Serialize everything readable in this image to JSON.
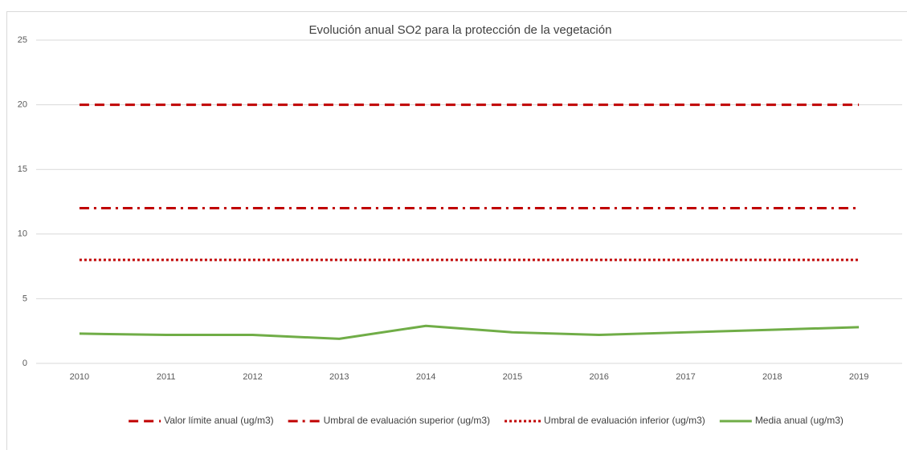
{
  "chart_data": {
    "type": "line",
    "title": "Evolución anual SO2 para la protección de la vegetación",
    "categories": [
      "2010",
      "2011",
      "2012",
      "2013",
      "2014",
      "2015",
      "2016",
      "2017",
      "2018",
      "2019"
    ],
    "series": [
      {
        "name": "Valor límite anual (ug/m3)",
        "color": "#c00000",
        "dash": "dash",
        "values": [
          20,
          20,
          20,
          20,
          20,
          20,
          20,
          20,
          20,
          20
        ]
      },
      {
        "name": "Umbral de evaluación superior (ug/m3)",
        "color": "#c00000",
        "dash": "dashdot",
        "values": [
          12,
          12,
          12,
          12,
          12,
          12,
          12,
          12,
          12,
          12
        ]
      },
      {
        "name": "Umbral de evaluación inferior (ug/m3)",
        "color": "#c00000",
        "dash": "dot",
        "values": [
          8,
          8,
          8,
          8,
          8,
          8,
          8,
          8,
          8,
          8
        ]
      },
      {
        "name": "Media anual (ug/m3)",
        "color": "#70ad47",
        "dash": "solid",
        "values": [
          2.3,
          2.2,
          2.2,
          1.9,
          2.9,
          2.4,
          2.2,
          2.4,
          2.6,
          2.8
        ]
      }
    ],
    "ylim": [
      0,
      25
    ],
    "yticks": [
      0,
      5,
      10,
      15,
      20,
      25
    ],
    "grid": true,
    "legend": "bottom"
  }
}
